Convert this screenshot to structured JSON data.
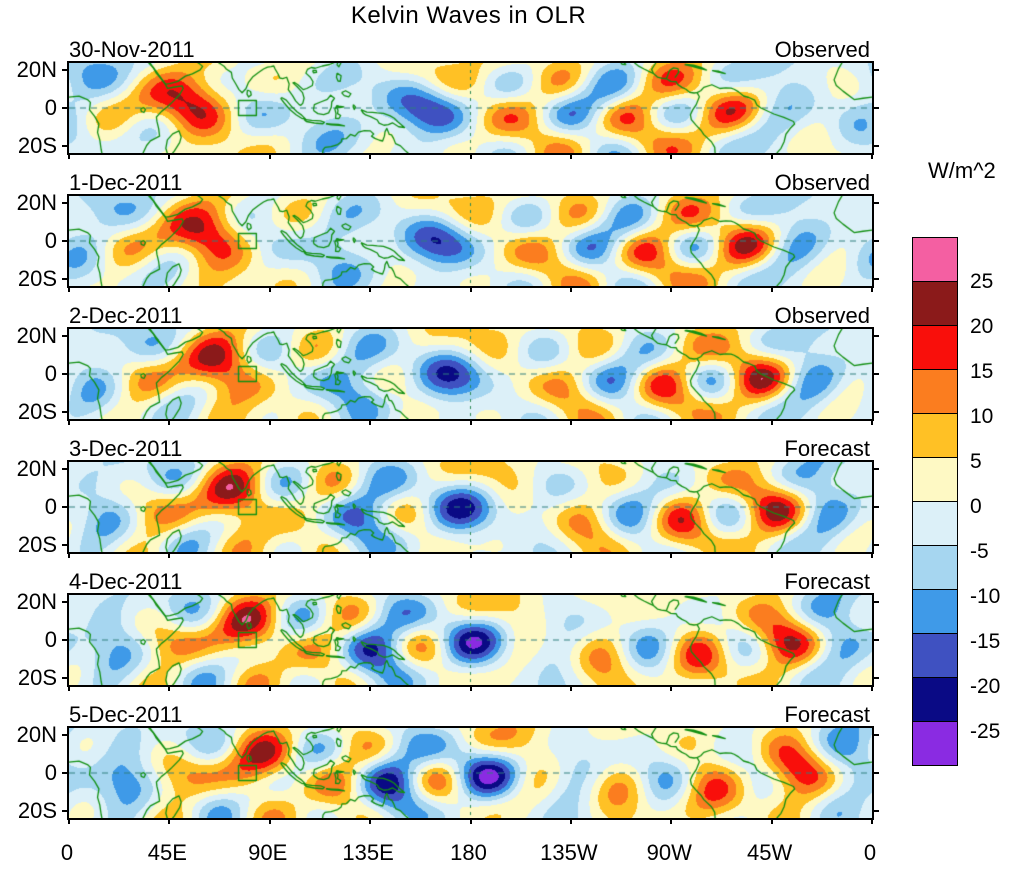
{
  "title": "Kelvin Waves in OLR",
  "y_axis": {
    "tick_labels": [
      "20N",
      "0",
      "20S"
    ]
  },
  "x_axis": {
    "tick_labels": [
      "0",
      "45E",
      "90E",
      "135E",
      "180",
      "135W",
      "90W",
      "45W",
      "0"
    ]
  },
  "colorbar": {
    "units_label": "W/m^2",
    "tick_labels": [
      "25",
      "20",
      "15",
      "10",
      "5",
      "0",
      "-5",
      "-10",
      "-15",
      "-20",
      "-25"
    ],
    "colors_top_to_bottom": [
      "#F45FA2",
      "#8B1A1A",
      "#F90F0B",
      "#FB7D1F",
      "#FFC125",
      "#FEF9C4",
      "#DCF0F8",
      "#A6D6F0",
      "#3F9AE8",
      "#3F51C1",
      "#0A0A85",
      "#8A2BE2"
    ]
  },
  "chart_data": {
    "type": "heatmap",
    "title": "Kelvin Waves in OLR",
    "variable": "Kelvin-wave filtered OLR anomalies (filled contour maps over tropical strip with green coastlines)",
    "units": "W/m^2",
    "contour_levels": [
      -25,
      -20,
      -15,
      -10,
      -5,
      0,
      5,
      10,
      15,
      20,
      25
    ],
    "lon_range_deg": [
      0,
      360
    ],
    "lat_range_deg": [
      -24,
      24
    ],
    "lat_tick_values": [
      20,
      0,
      -20
    ],
    "lon_tick_step_deg": 45,
    "panels": [
      {
        "date": "30-Nov-2011",
        "kind": "Observed"
      },
      {
        "date": "1-Dec-2011",
        "kind": "Observed"
      },
      {
        "date": "2-Dec-2011",
        "kind": "Observed"
      },
      {
        "date": "3-Dec-2011",
        "kind": "Forecast"
      },
      {
        "date": "4-Dec-2011",
        "kind": "Forecast"
      },
      {
        "date": "5-Dec-2011",
        "kind": "Forecast"
      }
    ],
    "reference_lines": [
      "dashed equator line at 0 latitude",
      "dashed date line at 180 longitude"
    ],
    "region_box": {
      "lon": [
        76,
        84
      ],
      "lat": [
        -4,
        4
      ]
    },
    "legend_position": "right colorbar",
    "grid": "off"
  }
}
